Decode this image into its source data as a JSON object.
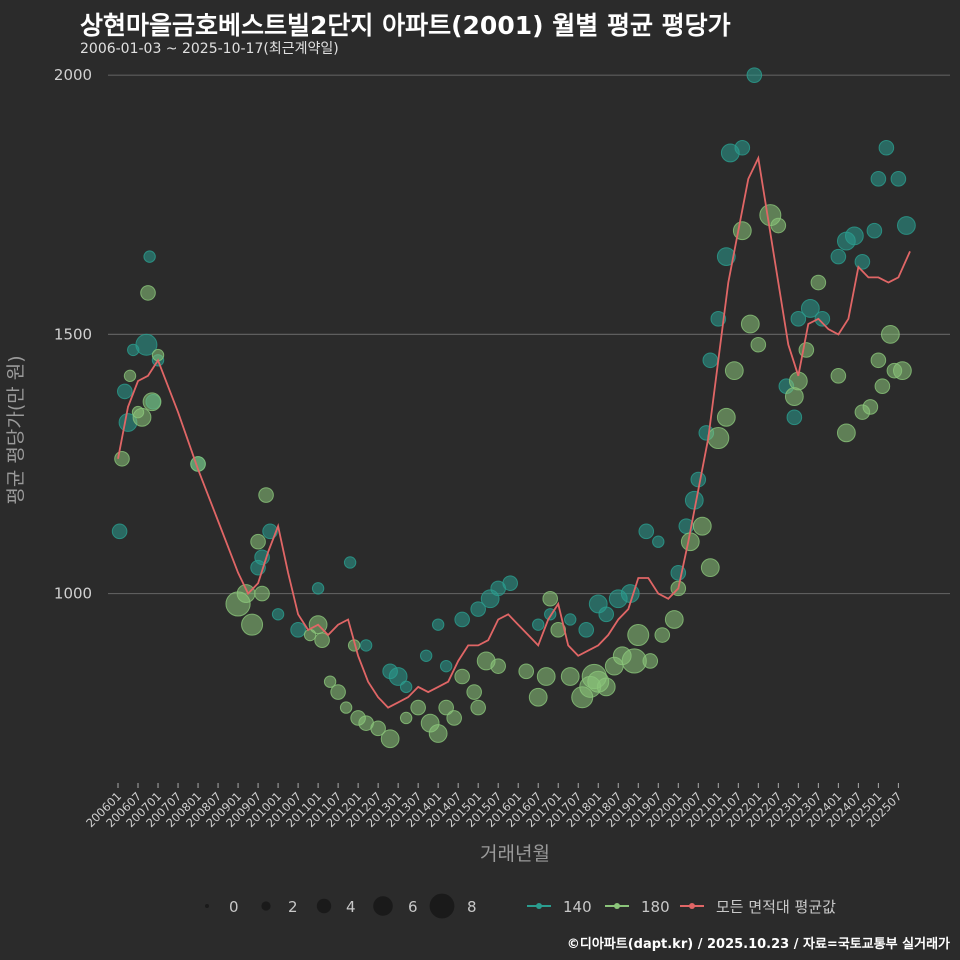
{
  "chart_data": {
    "type": "scatter",
    "title": "상현마을금호베스트빌2단지 아파트(2001) 월별 평균 평당가",
    "subtitle": "2006-01-03 ~ 2025-10-17(최근계약일)",
    "xlabel": "거래년월",
    "ylabel": "평균 평당가(만 원)",
    "ylim": [
      650,
      2010
    ],
    "x_range": [
      2006.0,
      2025.79
    ],
    "y_ticks": [
      1000,
      1500,
      2000
    ],
    "x_tick_labels": [
      "200601",
      "200607",
      "200701",
      "200707",
      "200801",
      "200807",
      "200901",
      "200907",
      "201001",
      "201007",
      "201101",
      "201107",
      "201201",
      "201207",
      "201301",
      "201307",
      "201401",
      "201407",
      "201501",
      "201507",
      "201601",
      "201607",
      "201701",
      "201707",
      "201801",
      "201807",
      "201901",
      "201907",
      "202001",
      "202007",
      "202101",
      "202107",
      "202201",
      "202207",
      "202301",
      "202307",
      "202401",
      "202407",
      "202501",
      "202507"
    ],
    "size_legend": [
      "0",
      "2",
      "4",
      "6",
      "8"
    ],
    "series": [
      {
        "name": "140",
        "color": "#2a9d8f",
        "points": [
          [
            2006.04,
            1120,
            3
          ],
          [
            2006.17,
            1390,
            3
          ],
          [
            2006.25,
            1330,
            4
          ],
          [
            2006.38,
            1470,
            2
          ],
          [
            2006.71,
            1480,
            5
          ],
          [
            2006.79,
            1650,
            2
          ],
          [
            2006.88,
            1370,
            3
          ],
          [
            2007.0,
            1450,
            2
          ],
          [
            2008.0,
            1250,
            3
          ],
          [
            2009.5,
            1050,
            3
          ],
          [
            2009.6,
            1070,
            3
          ],
          [
            2009.8,
            1120,
            3
          ],
          [
            2010.0,
            960,
            2
          ],
          [
            2010.5,
            930,
            3
          ],
          [
            2011.0,
            1010,
            2
          ],
          [
            2011.8,
            1060,
            2
          ],
          [
            2012.2,
            900,
            2
          ],
          [
            2012.8,
            850,
            3
          ],
          [
            2013.0,
            840,
            4
          ],
          [
            2013.2,
            820,
            2
          ],
          [
            2013.7,
            880,
            2
          ],
          [
            2014.0,
            940,
            2
          ],
          [
            2014.2,
            860,
            2
          ],
          [
            2014.6,
            950,
            3
          ],
          [
            2015.0,
            970,
            3
          ],
          [
            2015.3,
            990,
            4
          ],
          [
            2015.5,
            1010,
            3
          ],
          [
            2015.8,
            1020,
            3
          ],
          [
            2016.5,
            940,
            2
          ],
          [
            2016.8,
            960,
            2
          ],
          [
            2017.3,
            950,
            2
          ],
          [
            2017.7,
            930,
            3
          ],
          [
            2018.0,
            980,
            4
          ],
          [
            2018.2,
            960,
            3
          ],
          [
            2018.5,
            990,
            4
          ],
          [
            2018.8,
            1000,
            4
          ],
          [
            2019.2,
            1120,
            3
          ],
          [
            2019.5,
            1100,
            2
          ],
          [
            2020.0,
            1040,
            3
          ],
          [
            2020.2,
            1130,
            3
          ],
          [
            2020.4,
            1180,
            4
          ],
          [
            2020.5,
            1220,
            3
          ],
          [
            2020.7,
            1310,
            3
          ],
          [
            2020.8,
            1450,
            3
          ],
          [
            2021.0,
            1530,
            3
          ],
          [
            2021.2,
            1650,
            4
          ],
          [
            2021.3,
            1850,
            4
          ],
          [
            2021.6,
            1860,
            3
          ],
          [
            2021.9,
            2000,
            3
          ],
          [
            2022.7,
            1400,
            3
          ],
          [
            2022.9,
            1340,
            3
          ],
          [
            2023.0,
            1530,
            3
          ],
          [
            2023.3,
            1550,
            4
          ],
          [
            2023.6,
            1530,
            3
          ],
          [
            2024.0,
            1650,
            3
          ],
          [
            2024.2,
            1680,
            4
          ],
          [
            2024.4,
            1690,
            4
          ],
          [
            2024.6,
            1640,
            3
          ],
          [
            2024.9,
            1700,
            3
          ],
          [
            2025.0,
            1800,
            3
          ],
          [
            2025.2,
            1860,
            3
          ],
          [
            2025.5,
            1800,
            3
          ],
          [
            2025.7,
            1710,
            4
          ]
        ]
      },
      {
        "name": "180",
        "color": "#8bc57a",
        "points": [
          [
            2006.1,
            1260,
            3
          ],
          [
            2006.3,
            1420,
            2
          ],
          [
            2006.5,
            1350,
            2
          ],
          [
            2006.6,
            1340,
            4
          ],
          [
            2006.75,
            1580,
            3
          ],
          [
            2006.85,
            1370,
            4
          ],
          [
            2007.0,
            1460,
            2
          ],
          [
            2008.0,
            1250,
            3
          ],
          [
            2009.0,
            980,
            6
          ],
          [
            2009.2,
            1000,
            4
          ],
          [
            2009.35,
            940,
            5
          ],
          [
            2009.5,
            1100,
            3
          ],
          [
            2009.6,
            1000,
            3
          ],
          [
            2009.7,
            1190,
            3
          ],
          [
            2010.8,
            920,
            2
          ],
          [
            2011.0,
            940,
            4
          ],
          [
            2011.1,
            910,
            3
          ],
          [
            2011.3,
            830,
            2
          ],
          [
            2011.5,
            810,
            3
          ],
          [
            2011.7,
            780,
            2
          ],
          [
            2011.9,
            900,
            2
          ],
          [
            2012.0,
            760,
            3
          ],
          [
            2012.2,
            750,
            3
          ],
          [
            2012.5,
            740,
            3
          ],
          [
            2012.8,
            720,
            4
          ],
          [
            2013.2,
            760,
            2
          ],
          [
            2013.5,
            780,
            3
          ],
          [
            2013.8,
            750,
            4
          ],
          [
            2014.0,
            730,
            4
          ],
          [
            2014.2,
            780,
            3
          ],
          [
            2014.4,
            760,
            3
          ],
          [
            2014.6,
            840,
            3
          ],
          [
            2014.9,
            810,
            3
          ],
          [
            2015.0,
            780,
            3
          ],
          [
            2015.2,
            870,
            4
          ],
          [
            2015.5,
            860,
            3
          ],
          [
            2016.2,
            850,
            3
          ],
          [
            2016.5,
            800,
            4
          ],
          [
            2016.7,
            840,
            4
          ],
          [
            2016.8,
            990,
            3
          ],
          [
            2017.0,
            930,
            3
          ],
          [
            2017.3,
            840,
            4
          ],
          [
            2017.6,
            800,
            5
          ],
          [
            2017.8,
            820,
            5
          ],
          [
            2017.9,
            840,
            6
          ],
          [
            2018.0,
            830,
            5
          ],
          [
            2018.2,
            820,
            4
          ],
          [
            2018.4,
            860,
            4
          ],
          [
            2018.6,
            880,
            4
          ],
          [
            2018.9,
            870,
            6
          ],
          [
            2019.0,
            920,
            5
          ],
          [
            2019.3,
            870,
            3
          ],
          [
            2019.6,
            920,
            3
          ],
          [
            2019.9,
            950,
            4
          ],
          [
            2020.0,
            1010,
            3
          ],
          [
            2020.3,
            1100,
            4
          ],
          [
            2020.6,
            1130,
            4
          ],
          [
            2020.8,
            1050,
            4
          ],
          [
            2021.0,
            1300,
            5
          ],
          [
            2021.2,
            1340,
            4
          ],
          [
            2021.4,
            1430,
            4
          ],
          [
            2021.6,
            1700,
            4
          ],
          [
            2021.8,
            1520,
            4
          ],
          [
            2022.0,
            1480,
            3
          ],
          [
            2022.3,
            1730,
            5
          ],
          [
            2022.5,
            1710,
            3
          ],
          [
            2022.9,
            1380,
            4
          ],
          [
            2023.0,
            1410,
            4
          ],
          [
            2023.2,
            1470,
            3
          ],
          [
            2023.5,
            1600,
            3
          ],
          [
            2024.0,
            1420,
            3
          ],
          [
            2024.2,
            1310,
            4
          ],
          [
            2024.6,
            1350,
            3
          ],
          [
            2024.8,
            1360,
            3
          ],
          [
            2025.0,
            1450,
            3
          ],
          [
            2025.1,
            1400,
            3
          ],
          [
            2025.3,
            1500,
            4
          ],
          [
            2025.4,
            1430,
            3
          ],
          [
            2025.6,
            1430,
            4
          ]
        ]
      }
    ],
    "average_line": {
      "name": "모든 면적대 평균값",
      "color": "#e06666",
      "points": [
        [
          2006.0,
          1260
        ],
        [
          2006.25,
          1360
        ],
        [
          2006.5,
          1410
        ],
        [
          2006.75,
          1420
        ],
        [
          2007.0,
          1450
        ],
        [
          2007.25,
          1400
        ],
        [
          2007.5,
          1350
        ],
        [
          2008.0,
          1240
        ],
        [
          2008.5,
          1140
        ],
        [
          2009.0,
          1040
        ],
        [
          2009.25,
          1000
        ],
        [
          2009.5,
          1020
        ],
        [
          2009.75,
          1080
        ],
        [
          2010.0,
          1130
        ],
        [
          2010.25,
          1040
        ],
        [
          2010.5,
          960
        ],
        [
          2010.75,
          930
        ],
        [
          2011.0,
          940
        ],
        [
          2011.25,
          920
        ],
        [
          2011.5,
          940
        ],
        [
          2011.75,
          950
        ],
        [
          2012.0,
          880
        ],
        [
          2012.25,
          830
        ],
        [
          2012.5,
          800
        ],
        [
          2012.75,
          780
        ],
        [
          2013.0,
          790
        ],
        [
          2013.25,
          800
        ],
        [
          2013.5,
          820
        ],
        [
          2013.75,
          810
        ],
        [
          2014.0,
          820
        ],
        [
          2014.25,
          830
        ],
        [
          2014.5,
          870
        ],
        [
          2014.75,
          900
        ],
        [
          2015.0,
          900
        ],
        [
          2015.25,
          910
        ],
        [
          2015.5,
          950
        ],
        [
          2015.75,
          960
        ],
        [
          2016.0,
          940
        ],
        [
          2016.25,
          920
        ],
        [
          2016.5,
          900
        ],
        [
          2016.75,
          950
        ],
        [
          2017.0,
          980
        ],
        [
          2017.25,
          900
        ],
        [
          2017.5,
          880
        ],
        [
          2017.75,
          890
        ],
        [
          2018.0,
          900
        ],
        [
          2018.25,
          920
        ],
        [
          2018.5,
          950
        ],
        [
          2018.75,
          970
        ],
        [
          2019.0,
          1030
        ],
        [
          2019.25,
          1030
        ],
        [
          2019.5,
          1000
        ],
        [
          2019.75,
          990
        ],
        [
          2020.0,
          1010
        ],
        [
          2020.25,
          1100
        ],
        [
          2020.5,
          1200
        ],
        [
          2020.75,
          1300
        ],
        [
          2021.0,
          1450
        ],
        [
          2021.25,
          1600
        ],
        [
          2021.5,
          1700
        ],
        [
          2021.75,
          1800
        ],
        [
          2022.0,
          1840
        ],
        [
          2022.25,
          1720
        ],
        [
          2022.5,
          1600
        ],
        [
          2022.75,
          1480
        ],
        [
          2023.0,
          1420
        ],
        [
          2023.25,
          1520
        ],
        [
          2023.5,
          1530
        ],
        [
          2023.75,
          1510
        ],
        [
          2024.0,
          1500
        ],
        [
          2024.25,
          1530
        ],
        [
          2024.5,
          1630
        ],
        [
          2024.75,
          1610
        ],
        [
          2025.0,
          1610
        ],
        [
          2025.25,
          1600
        ],
        [
          2025.5,
          1610
        ],
        [
          2025.79,
          1660
        ]
      ]
    },
    "legend": {
      "series_140": "140",
      "series_180": "180",
      "average": "모든 면적대 평균값"
    }
  },
  "footer": "©디아파트(dapt.kr) / 2025.10.23 / 자료=국토교통부 실거래가"
}
